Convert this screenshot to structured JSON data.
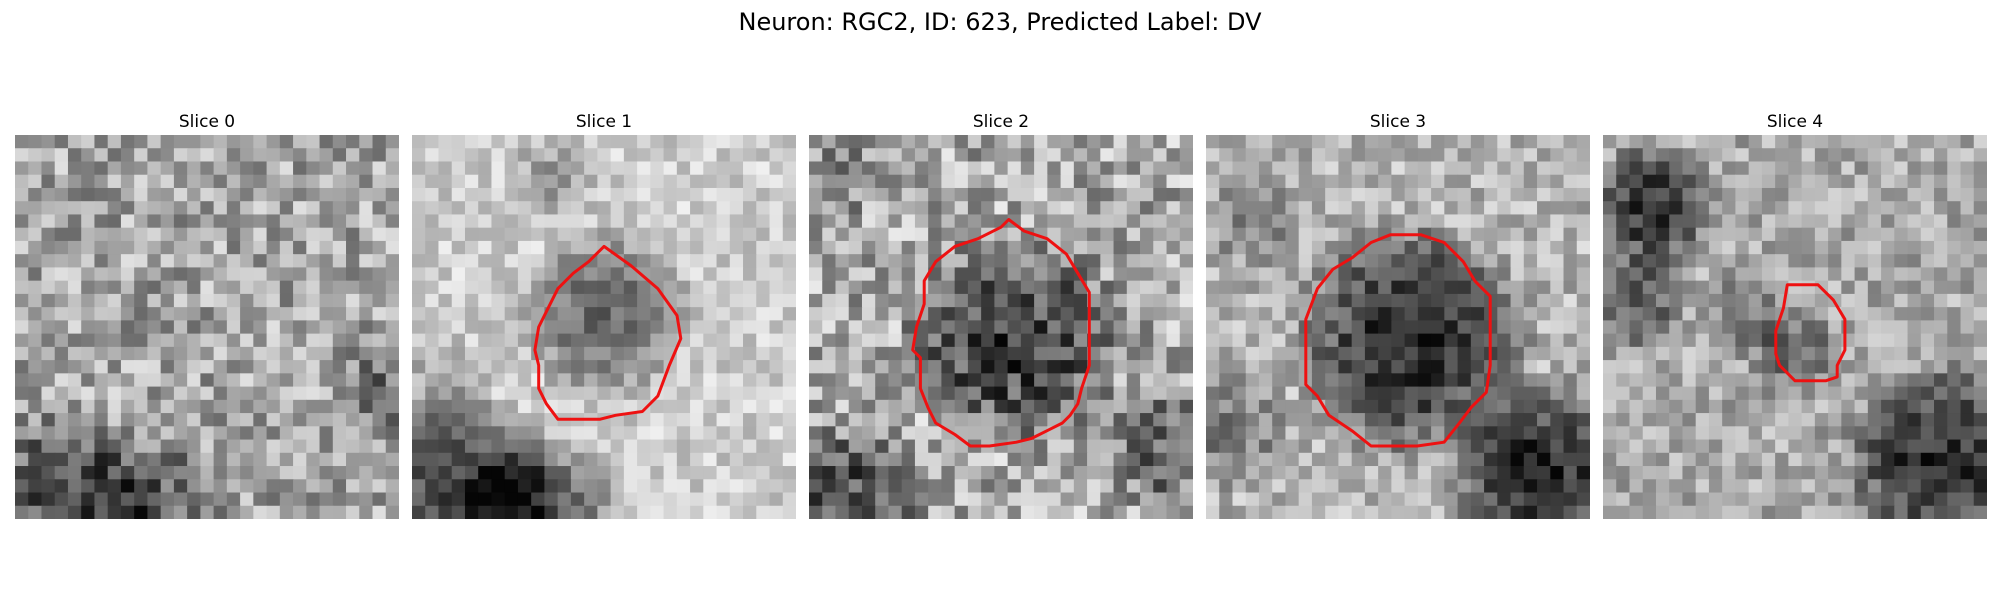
{
  "figure": {
    "title": "Neuron: RGC2, ID: 623, Predicted Label: DV"
  },
  "panels": [
    {
      "title": "Slice 0",
      "has_contour": false
    },
    {
      "title": "Slice 1",
      "has_contour": true
    },
    {
      "title": "Slice 2",
      "has_contour": true
    },
    {
      "title": "Slice 3",
      "has_contour": true
    },
    {
      "title": "Slice 4",
      "has_contour": true
    }
  ],
  "contour_color": "#ee1111"
}
